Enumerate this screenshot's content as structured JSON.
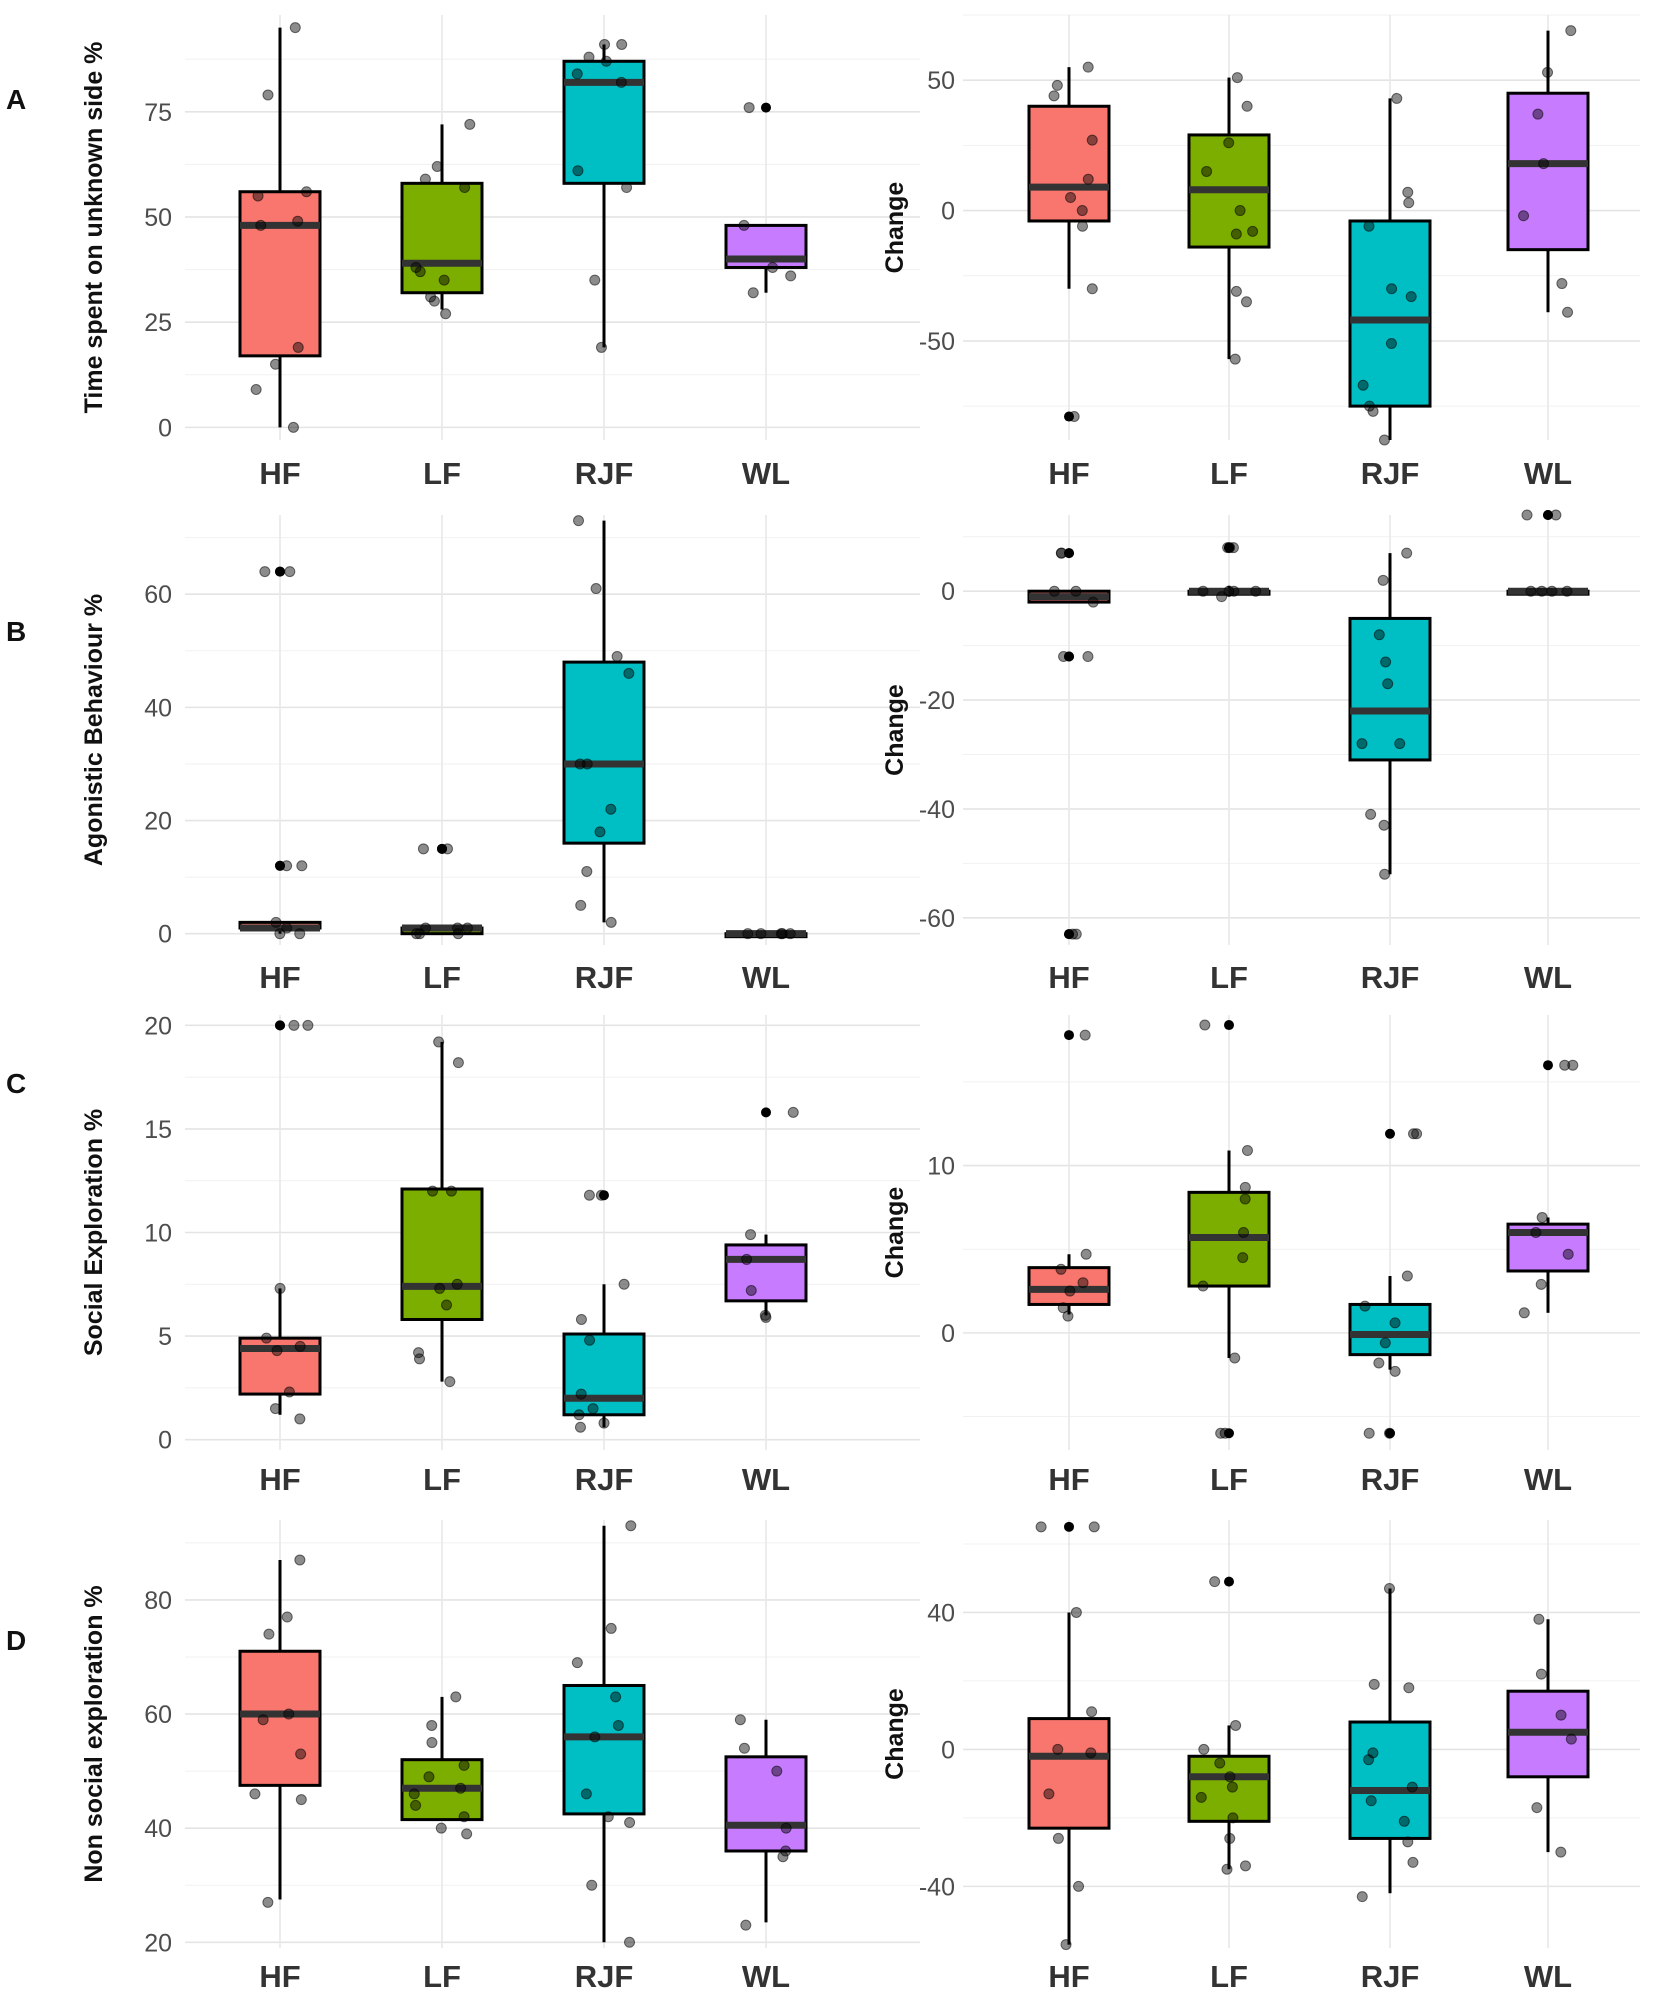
{
  "figure": {
    "row_labels": [
      "A",
      "B",
      "C",
      "D"
    ],
    "groups": [
      "HF",
      "LF",
      "RJF",
      "WL"
    ],
    "colors": {
      "HF": "#F8766D",
      "LF": "#7CAE00",
      "RJF": "#00BFC4",
      "WL": "#C77CFF"
    }
  },
  "chart_data": [
    {
      "id": "A-left",
      "type": "box",
      "row": "A",
      "ylabel": "Time spent on unknown side %",
      "ylim": [
        -3,
        98
      ],
      "yticks": [
        0,
        25,
        50,
        75
      ],
      "tick_labels": [
        "0",
        "25",
        "50",
        "75"
      ],
      "categories": [
        "HF",
        "LF",
        "RJF",
        "WL"
      ],
      "boxes": [
        {
          "group": "HF",
          "min": 0,
          "q1": 17,
          "median": 48,
          "q3": 56,
          "max": 95,
          "outliers": [],
          "points": [
            0,
            9,
            15,
            19,
            48,
            49,
            55,
            56,
            79,
            95
          ]
        },
        {
          "group": "LF",
          "min": 28,
          "q1": 32,
          "median": 39,
          "q3": 58,
          "max": 72,
          "outliers": [],
          "points": [
            27,
            30,
            31,
            35,
            37,
            38,
            57,
            59,
            62,
            72
          ]
        },
        {
          "group": "RJF",
          "min": 19,
          "q1": 58,
          "median": 82,
          "q3": 87,
          "max": 91,
          "outliers": [],
          "points": [
            19,
            35,
            57,
            61,
            82,
            84,
            87,
            88,
            91,
            91
          ]
        },
        {
          "group": "WL",
          "min": 32,
          "q1": 38,
          "median": 40,
          "q3": 48,
          "max": 48,
          "outliers": [
            76
          ],
          "points": [
            32,
            36,
            38,
            48,
            76
          ]
        }
      ]
    },
    {
      "id": "A-right",
      "type": "box",
      "row": "A",
      "ylabel": "Change",
      "ylim": [
        -88,
        75
      ],
      "yticks": [
        -50,
        0,
        50
      ],
      "tick_labels": [
        "-50",
        "0",
        "50"
      ],
      "categories": [
        "HF",
        "LF",
        "RJF",
        "WL"
      ],
      "boxes": [
        {
          "group": "HF",
          "min": -30,
          "q1": -4,
          "median": 9,
          "q3": 40,
          "max": 55,
          "outliers": [
            -79
          ],
          "points": [
            -79,
            -30,
            -6,
            0,
            5,
            12,
            27,
            44,
            48,
            55
          ]
        },
        {
          "group": "LF",
          "min": -57,
          "q1": -14,
          "median": 8,
          "q3": 29,
          "max": 51,
          "outliers": [],
          "points": [
            -57,
            -35,
            -31,
            -9,
            -8,
            0,
            15,
            26,
            40,
            51
          ]
        },
        {
          "group": "RJF",
          "min": -88,
          "q1": -75,
          "median": -42,
          "q3": -4,
          "max": 43,
          "outliers": [],
          "points": [
            -88,
            -77,
            -75,
            -67,
            -51,
            -33,
            -30,
            -6,
            3,
            7,
            43
          ]
        },
        {
          "group": "WL",
          "min": -39,
          "q1": -15,
          "median": 18,
          "q3": 45,
          "max": 69,
          "outliers": [],
          "points": [
            -39,
            -28,
            -2,
            18,
            37,
            53,
            69
          ]
        }
      ]
    },
    {
      "id": "B-left",
      "type": "box",
      "row": "B",
      "ylabel": "Agonistic Behaviour %",
      "ylim": [
        -2,
        74
      ],
      "yticks": [
        0,
        20,
        40,
        60
      ],
      "tick_labels": [
        "0",
        "20",
        "40",
        "60"
      ],
      "categories": [
        "HF",
        "LF",
        "RJF",
        "WL"
      ],
      "boxes": [
        {
          "group": "HF",
          "min": 0,
          "q1": 1,
          "median": 1,
          "q3": 2,
          "max": 2,
          "outliers": [
            12,
            12,
            64,
            64
          ],
          "points": [
            0,
            0,
            1,
            2,
            12,
            12,
            64,
            64
          ]
        },
        {
          "group": "LF",
          "min": 0,
          "q1": 0,
          "median": 1,
          "q3": 1,
          "max": 1,
          "outliers": [
            15,
            15
          ],
          "points": [
            0,
            0,
            0,
            1,
            1,
            1,
            15,
            15
          ]
        },
        {
          "group": "RJF",
          "min": 2,
          "q1": 16,
          "median": 30,
          "q3": 48,
          "max": 73,
          "outliers": [],
          "points": [
            2,
            5,
            11,
            18,
            22,
            30,
            30,
            46,
            49,
            61,
            73
          ]
        },
        {
          "group": "WL",
          "min": 0,
          "q1": 0,
          "median": 0,
          "q3": 0,
          "max": 0,
          "outliers": [],
          "points": [
            0,
            0,
            0,
            0,
            0
          ]
        }
      ]
    },
    {
      "id": "B-right",
      "type": "box",
      "row": "B",
      "ylabel": "Change",
      "ylim": [
        -65,
        14
      ],
      "yticks": [
        -60,
        -40,
        -20,
        0
      ],
      "tick_labels": [
        "-60",
        "-40",
        "-20",
        "0"
      ],
      "categories": [
        "HF",
        "LF",
        "RJF",
        "WL"
      ],
      "boxes": [
        {
          "group": "HF",
          "min": -2,
          "q1": -2,
          "median": -1,
          "q3": 0,
          "max": 0,
          "outliers": [
            -12,
            -12,
            -63,
            -63,
            7,
            7
          ],
          "points": [
            -63,
            -63,
            -12,
            -12,
            -2,
            0,
            0,
            7,
            7
          ]
        },
        {
          "group": "LF",
          "min": -1,
          "q1": 0,
          "median": 0,
          "q3": 0,
          "max": 1,
          "outliers": [
            8,
            8,
            8
          ],
          "points": [
            -1,
            0,
            0,
            0,
            0,
            8,
            8,
            8
          ]
        },
        {
          "group": "RJF",
          "min": -52,
          "q1": -31,
          "median": -22,
          "q3": -5,
          "max": 7,
          "outliers": [],
          "points": [
            -52,
            -43,
            -41,
            -28,
            -28,
            -17,
            -13,
            -8,
            2,
            7
          ]
        },
        {
          "group": "WL",
          "min": 0,
          "q1": 0,
          "median": 0,
          "q3": 0,
          "max": 0,
          "outliers": [
            14,
            14
          ],
          "points": [
            0,
            0,
            0,
            0,
            14,
            14
          ]
        }
      ]
    },
    {
      "id": "C-left",
      "type": "box",
      "row": "C",
      "ylabel": "Social Exploration %",
      "ylim": [
        -0.5,
        20.5
      ],
      "yticks": [
        0,
        5,
        10,
        15,
        20
      ],
      "tick_labels": [
        "0",
        "5",
        "10",
        "15",
        "20"
      ],
      "categories": [
        "HF",
        "LF",
        "RJF",
        "WL"
      ],
      "boxes": [
        {
          "group": "HF",
          "min": 1.2,
          "q1": 2.2,
          "median": 4.4,
          "q3": 4.9,
          "max": 7.3,
          "outliers": [
            20,
            20
          ],
          "points": [
            1,
            1.5,
            2.3,
            4.3,
            4.5,
            4.9,
            7.3,
            20,
            20
          ]
        },
        {
          "group": "LF",
          "min": 2.8,
          "q1": 5.8,
          "median": 7.4,
          "q3": 12.1,
          "max": 19.2,
          "outliers": [],
          "points": [
            2.8,
            3.9,
            4.2,
            6.5,
            7.3,
            7.5,
            12,
            12,
            18.2,
            19.2
          ]
        },
        {
          "group": "RJF",
          "min": 0.6,
          "q1": 1.2,
          "median": 2.0,
          "q3": 5.1,
          "max": 7.5,
          "outliers": [
            11.8
          ],
          "points": [
            0.6,
            0.8,
            1.2,
            1.5,
            2.2,
            4.8,
            5.8,
            7.5,
            11.8,
            11.8
          ]
        },
        {
          "group": "WL",
          "min": 6.0,
          "q1": 6.7,
          "median": 8.7,
          "q3": 9.4,
          "max": 9.9,
          "outliers": [
            15.8
          ],
          "points": [
            5.9,
            6.0,
            7.2,
            8.7,
            9.9,
            15.8
          ]
        }
      ]
    },
    {
      "id": "C-right",
      "type": "box",
      "row": "C",
      "ylabel": "Change",
      "ylim": [
        -7,
        19
      ],
      "yticks": [
        0,
        10
      ],
      "tick_labels": [
        "0",
        "10"
      ],
      "categories": [
        "HF",
        "LF",
        "RJF",
        "WL"
      ],
      "boxes": [
        {
          "group": "HF",
          "min": 1.1,
          "q1": 1.7,
          "median": 2.6,
          "q3": 3.9,
          "max": 4.7,
          "outliers": [
            17.8
          ],
          "points": [
            1,
            1.5,
            2.5,
            3,
            3.8,
            4.7,
            17.8
          ]
        },
        {
          "group": "LF",
          "min": -1.5,
          "q1": 2.8,
          "median": 5.7,
          "q3": 8.4,
          "max": 10.9,
          "outliers": [
            18.4,
            -6
          ],
          "points": [
            -6,
            -6,
            -1.5,
            2.8,
            4.5,
            6,
            8,
            8.7,
            10.9,
            18.4
          ]
        },
        {
          "group": "RJF",
          "min": -2.2,
          "q1": -1.3,
          "median": -0.1,
          "q3": 1.7,
          "max": 3.4,
          "outliers": [
            11.9,
            -6
          ],
          "points": [
            -6,
            -6,
            -2.3,
            -1.8,
            -0.6,
            0.6,
            1.6,
            3.4,
            11.9,
            11.9
          ]
        },
        {
          "group": "WL",
          "min": 1.2,
          "q1": 3.7,
          "median": 6.0,
          "q3": 6.5,
          "max": 6.9,
          "outliers": [
            16
          ],
          "points": [
            1.2,
            2.9,
            4.7,
            6,
            6.9,
            16,
            16
          ]
        }
      ]
    },
    {
      "id": "D-left",
      "type": "box",
      "row": "D",
      "ylabel": "Non social exploration %",
      "ylim": [
        19,
        94
      ],
      "yticks": [
        20,
        40,
        60,
        80
      ],
      "tick_labels": [
        "20",
        "40",
        "60",
        "80"
      ],
      "categories": [
        "HF",
        "LF",
        "RJF",
        "WL"
      ],
      "boxes": [
        {
          "group": "HF",
          "min": 27.5,
          "q1": 47.5,
          "median": 60,
          "q3": 71,
          "max": 87,
          "outliers": [],
          "points": [
            27,
            45,
            46,
            53,
            59,
            60,
            74,
            77,
            87
          ]
        },
        {
          "group": "LF",
          "min": 41.5,
          "q1": 41.5,
          "median": 47,
          "q3": 52,
          "max": 63,
          "outliers": [],
          "points": [
            39,
            40,
            42,
            44,
            46,
            47,
            49,
            51,
            55,
            58,
            63
          ]
        },
        {
          "group": "RJF",
          "min": 20,
          "q1": 42.5,
          "median": 56,
          "q3": 65,
          "max": 93,
          "outliers": [],
          "points": [
            20,
            30,
            41,
            42,
            46,
            56,
            58,
            63,
            69,
            75,
            93
          ]
        },
        {
          "group": "WL",
          "min": 23.5,
          "q1": 36,
          "median": 40.5,
          "q3": 52.5,
          "max": 59,
          "outliers": [],
          "points": [
            23,
            35,
            36,
            40,
            50,
            54,
            59
          ]
        }
      ]
    },
    {
      "id": "D-right",
      "type": "box",
      "row": "D",
      "ylabel": "Change",
      "ylim": [
        -58,
        67
      ],
      "yticks": [
        -40,
        0,
        40
      ],
      "tick_labels": [
        "-40",
        "0",
        "40"
      ],
      "categories": [
        "HF",
        "LF",
        "RJF",
        "WL"
      ],
      "boxes": [
        {
          "group": "HF",
          "min": -57,
          "q1": -23,
          "median": -2,
          "q3": 9,
          "max": 40,
          "outliers": [
            65
          ],
          "points": [
            -57,
            -40,
            -26,
            -13,
            -1,
            0,
            11,
            40,
            65,
            65
          ]
        },
        {
          "group": "LF",
          "min": -35,
          "q1": -21,
          "median": -8,
          "q3": -2,
          "max": 7,
          "outliers": [
            49
          ],
          "points": [
            -35,
            -34,
            -26,
            -20,
            -14,
            -11,
            -8,
            -4,
            0,
            7,
            49
          ]
        },
        {
          "group": "RJF",
          "min": -42,
          "q1": -26,
          "median": -12,
          "q3": 8,
          "max": 47,
          "outliers": [],
          "points": [
            -43,
            -33,
            -27,
            -21,
            -15,
            -11,
            -3,
            -1,
            18,
            19,
            47
          ]
        },
        {
          "group": "WL",
          "min": -30,
          "q1": -8,
          "median": 5,
          "q3": 17,
          "max": 38,
          "outliers": [],
          "points": [
            -30,
            -17,
            3,
            10,
            22,
            38
          ]
        }
      ]
    }
  ]
}
